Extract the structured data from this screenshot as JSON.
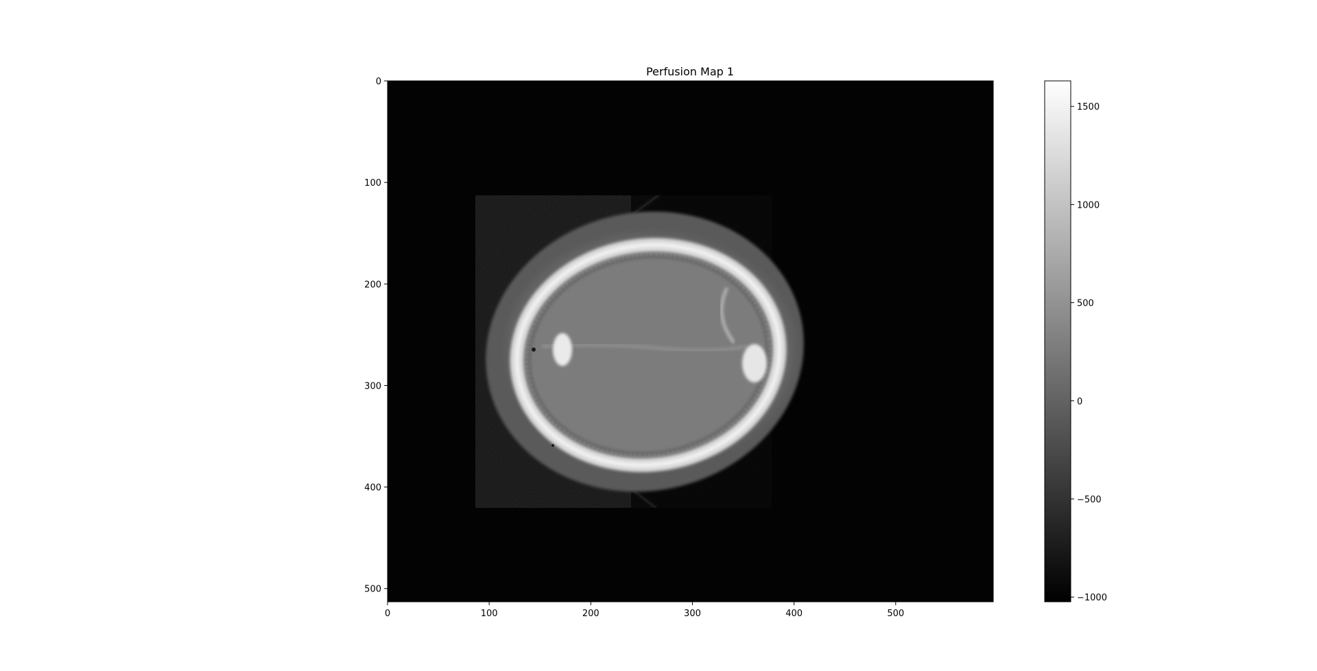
{
  "figure": {
    "title": "Perfusion Map 1",
    "x_ticks": [
      "0",
      "100",
      "200",
      "300",
      "400",
      "500"
    ],
    "y_ticks": [
      "0",
      "100",
      "200",
      "300",
      "400",
      "500"
    ],
    "x_range": [
      0,
      596
    ],
    "y_range": [
      0,
      513
    ],
    "colorbar": {
      "ticks": [
        "1500",
        "1000",
        "500",
        "0",
        "−500",
        "−1000"
      ],
      "tick_values": [
        1500,
        1000,
        500,
        0,
        -500,
        -1000
      ],
      "range": [
        -1024,
        1630
      ],
      "colormap": "gray"
    }
  }
}
